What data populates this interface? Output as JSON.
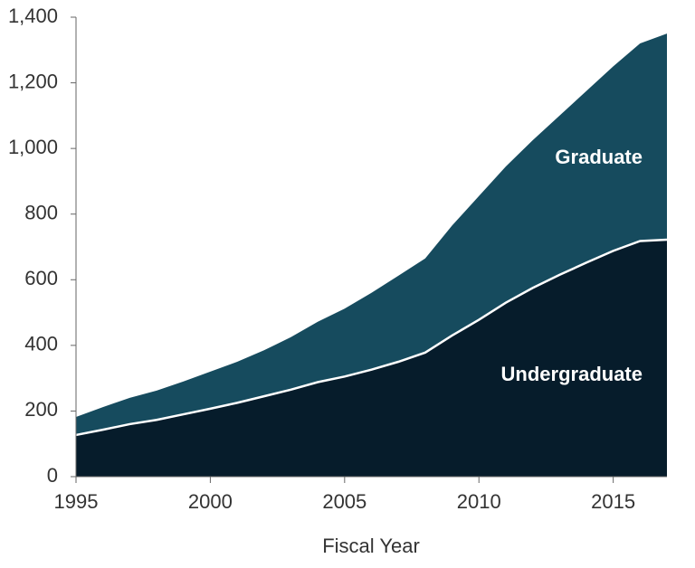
{
  "chart_data": {
    "type": "stacked-area",
    "x": [
      1995,
      1996,
      1997,
      1998,
      1999,
      2000,
      2001,
      2002,
      2003,
      2004,
      2005,
      2006,
      2007,
      2008,
      2009,
      2010,
      2011,
      2012,
      2013,
      2014,
      2015,
      2016,
      2017
    ],
    "series": [
      {
        "name": "Undergraduate",
        "color": "#061c2b",
        "values": [
          127,
          143,
          160,
          173,
          190,
          207,
          225,
          245,
          265,
          288,
          305,
          326,
          350,
          378,
          430,
          478,
          530,
          575,
          615,
          652,
          688,
          718,
          722
        ]
      },
      {
        "name": "Graduate",
        "color": "#164b5e",
        "values": [
          55,
          69,
          80,
          89,
          100,
          113,
          125,
          140,
          160,
          184,
          207,
          234,
          262,
          287,
          335,
          377,
          415,
          450,
          485,
          523,
          562,
          602,
          628
        ]
      }
    ],
    "xlim": [
      1995,
      2017
    ],
    "xticks": [
      1995,
      2000,
      2005,
      2010,
      2015
    ],
    "ylim": [
      0,
      1400
    ],
    "yticks": [
      0,
      200,
      400,
      600,
      800,
      {
        "value": 1000,
        "label": "1,000"
      },
      {
        "value": 1200,
        "label": "1,200"
      },
      {
        "value": 1400,
        "label": "1,400"
      }
    ],
    "x_label": "Fiscal Year"
  }
}
